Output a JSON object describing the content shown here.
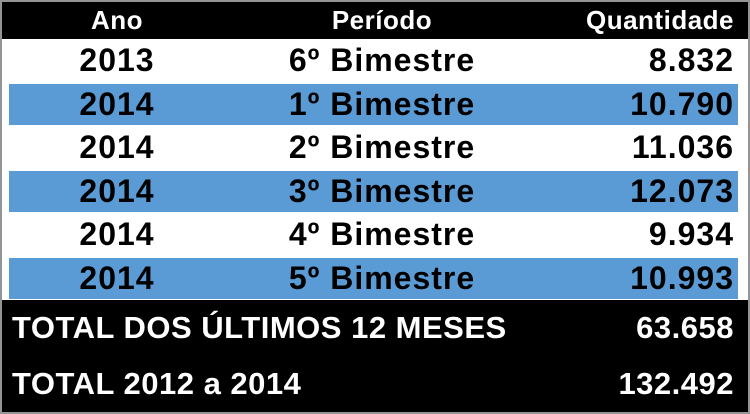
{
  "colors": {
    "header_bg": "#000000",
    "row_highlight": "#5B9BD5",
    "text_light": "#FFFFFF",
    "text_dark": "#000000",
    "border": "#949494",
    "row_bg": "#FFFFFF"
  },
  "table": {
    "headers": {
      "ano": "Ano",
      "periodo": "Período",
      "quantidade": "Quantidade"
    },
    "rows": [
      {
        "ano": "2013",
        "periodo": "6º Bimestre",
        "quantidade": "8.832",
        "highlighted": false
      },
      {
        "ano": "2014",
        "periodo": "1º Bimestre",
        "quantidade": "10.790",
        "highlighted": true
      },
      {
        "ano": "2014",
        "periodo": "2º Bimestre",
        "quantidade": "11.036",
        "highlighted": false
      },
      {
        "ano": "2014",
        "periodo": "3º Bimestre",
        "quantidade": "12.073",
        "highlighted": true
      },
      {
        "ano": "2014",
        "periodo": "4º Bimestre",
        "quantidade": "9.934",
        "highlighted": false
      },
      {
        "ano": "2014",
        "periodo": "5º Bimestre",
        "quantidade": "10.993",
        "highlighted": true
      }
    ],
    "footer": [
      {
        "label": "TOTAL DOS ÚLTIMOS 12 MESES",
        "value": "63.658"
      },
      {
        "label": "TOTAL 2012 a 2014",
        "value": "132.492"
      }
    ]
  },
  "chart_data": {
    "type": "table",
    "title": "",
    "columns": [
      "Ano",
      "Período",
      "Quantidade"
    ],
    "rows": [
      [
        2013,
        "6º Bimestre",
        8832
      ],
      [
        2014,
        "1º Bimestre",
        10790
      ],
      [
        2014,
        "2º Bimestre",
        11036
      ],
      [
        2014,
        "3º Bimestre",
        12073
      ],
      [
        2014,
        "4º Bimestre",
        9934
      ],
      [
        2014,
        "5º Bimestre",
        10993
      ]
    ],
    "totals": [
      {
        "label": "TOTAL DOS ÚLTIMOS 12 MESES",
        "value": 63658
      },
      {
        "label": "TOTAL 2012 a 2014",
        "value": 132492
      }
    ],
    "layout_hints": {
      "header_style": "black band, white bold text",
      "highlighted_rows": [
        1,
        3,
        5
      ],
      "highlight_color": "#5B9BD5",
      "quantity_alignment": "right"
    }
  }
}
